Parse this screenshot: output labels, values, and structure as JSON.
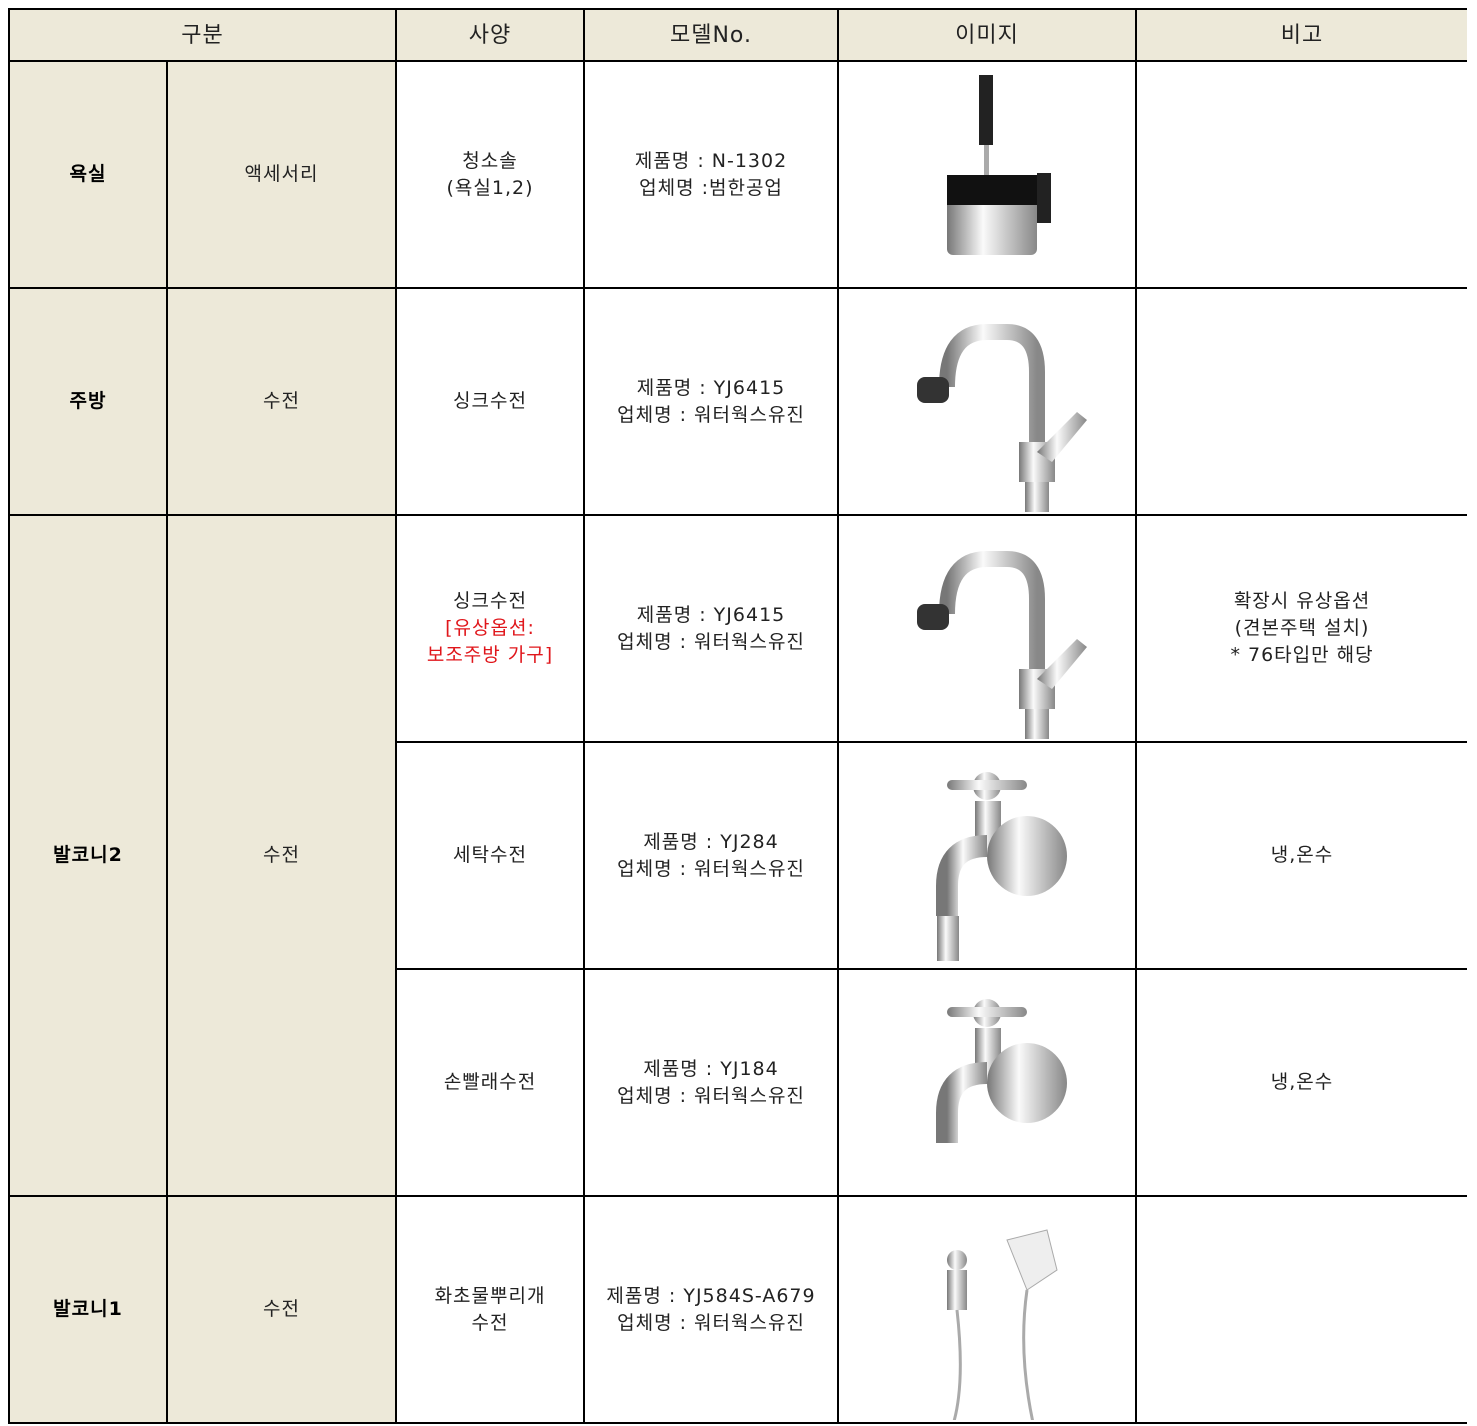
{
  "header": [
    "구분",
    "사양",
    "모델No.",
    "이미지",
    "비고"
  ],
  "rows": [
    {
      "category": "욕실",
      "subcategory": "액세서리",
      "items": [
        {
          "spec": [
            "청소솔",
            "(욕실1,2)"
          ],
          "model": [
            "제품명 : N-1302",
            "업체명 :범한공업"
          ],
          "note": []
        }
      ]
    },
    {
      "category": "주방",
      "subcategory": "수전",
      "items": [
        {
          "spec": [
            "싱크수전"
          ],
          "model": [
            "제품명 : YJ6415",
            "업체명 : 워터웍스유진"
          ],
          "note": []
        }
      ]
    },
    {
      "category": "발코니2",
      "subcategory": "수전",
      "items": [
        {
          "spec": [
            "싱크수전"
          ],
          "spec_option": [
            "[유상옵션:",
            "보조주방 가구]"
          ],
          "model": [
            "제품명 : YJ6415",
            "업체명 : 워터웍스유진"
          ],
          "note": [
            "확장시 유상옵션",
            "(견본주택 설치)",
            "* 76타입만 해당"
          ]
        },
        {
          "spec": [
            "세탁수전"
          ],
          "model": [
            "제품명 : YJ284",
            "업체명 : 워터웍스유진"
          ],
          "note": [
            "냉,온수"
          ]
        },
        {
          "spec": [
            "손빨래수전"
          ],
          "model": [
            "제품명 : YJ184",
            "업체명 : 워터웍스유진"
          ],
          "note": [
            "냉,온수"
          ]
        }
      ]
    },
    {
      "category": "발코니1",
      "subcategory": "수전",
      "items": [
        {
          "spec": [
            "화초물뿌리개",
            "수전"
          ],
          "model": [
            "제품명 : YJ584S-A679",
            "업체명 : 워터웍스유진"
          ],
          "note": []
        }
      ]
    }
  ]
}
